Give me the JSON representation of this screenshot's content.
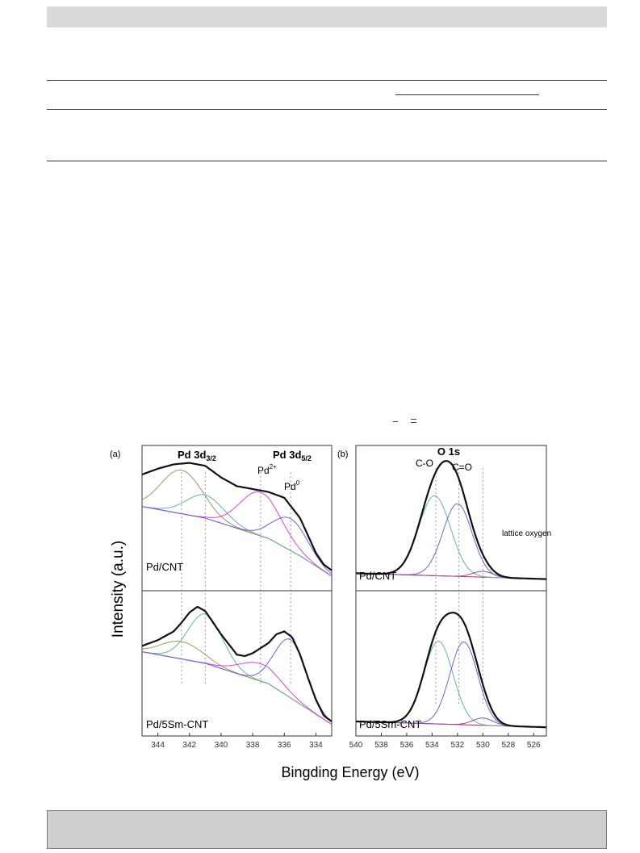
{
  "header": {
    "bar_color": "#d9d9d9"
  },
  "footer": {
    "box_color": "#cfcfcf"
  },
  "figure": {
    "ylabel": "Intensity (a.u.)",
    "xlabel": "Bingding Energy (eV)",
    "colors": {
      "envelope": "#111111",
      "pd_olive": "#9a9a55",
      "pd_cyan": "#5fb3b3",
      "pd_magenta": "#e040e0",
      "pd_blue": "#6666dd",
      "pd_bg_red": "#e04040",
      "o_cyan": "#5fb3b3",
      "o_blue": "#6666dd",
      "o_lattice": "#8a4aa0",
      "o_bg": "#cc2244"
    }
  },
  "chart_data": [
    {
      "type": "line",
      "panel_label": "(a)",
      "x_range": [
        345,
        333
      ],
      "x_reversed": true,
      "xticks": [
        344,
        342,
        340,
        338,
        336,
        334
      ],
      "annotations": [
        "Pd 3d",
        "3/2",
        "Pd 3d",
        "5/2",
        "Pd",
        "2+",
        "Pd",
        "0"
      ],
      "reference_lines_ev": [
        342.5,
        341.0,
        337.5,
        335.6
      ],
      "subpanels": [
        {
          "label": "Pd/CNT",
          "envelope": {
            "x": [
              345,
              344,
              343,
              342,
              341,
              340,
              339,
              338,
              337,
              336,
              335,
              334.5,
              334,
              333.5,
              333
            ],
            "y": [
              0.8,
              0.84,
              0.87,
              0.88,
              0.86,
              0.78,
              0.72,
              0.7,
              0.68,
              0.64,
              0.5,
              0.38,
              0.26,
              0.18,
              0.14
            ]
          },
          "components": [
            {
              "name": "Pd 3d3/2 Pd2+",
              "color_key": "pd_olive",
              "center": 342.5,
              "height": 0.3,
              "width": 1.3
            },
            {
              "name": "Pd 3d3/2 Pd0",
              "color_key": "pd_cyan",
              "center": 341.0,
              "height": 0.16,
              "width": 1.2
            },
            {
              "name": "Pd 3d5/2 Pd2+",
              "color_key": "pd_magenta",
              "center": 337.5,
              "height": 0.3,
              "width": 1.3
            },
            {
              "name": "Pd 3d5/2 Pd0",
              "color_key": "pd_blue",
              "center": 335.6,
              "height": 0.22,
              "width": 1.1
            }
          ],
          "background": {
            "x": [
              345,
              341,
              337,
              335,
              333
            ],
            "y": [
              0.58,
              0.5,
              0.36,
              0.24,
              0.1
            ]
          }
        },
        {
          "label": "Pd/5Sm-CNT",
          "envelope": {
            "x": [
              345,
              344,
              343,
              342.5,
              342,
              341.5,
              341,
              340,
              339,
              338.5,
              338,
              337,
              336.5,
              336,
              335.5,
              335,
              334.5,
              334,
              333.5,
              333
            ],
            "y": [
              0.62,
              0.66,
              0.72,
              0.78,
              0.85,
              0.89,
              0.86,
              0.7,
              0.56,
              0.55,
              0.57,
              0.64,
              0.7,
              0.72,
              0.68,
              0.56,
              0.4,
              0.25,
              0.14,
              0.1
            ]
          },
          "components": [
            {
              "name": "Pd 3d3/2 Pd2+",
              "color_key": "pd_olive",
              "center": 342.5,
              "height": 0.12,
              "width": 1.3
            },
            {
              "name": "Pd 3d3/2 Pd0",
              "color_key": "pd_cyan",
              "center": 341.0,
              "height": 0.34,
              "width": 1.1
            },
            {
              "name": "Pd 3d5/2 Pd2+",
              "color_key": "pd_magenta",
              "center": 337.5,
              "height": 0.12,
              "width": 1.3
            },
            {
              "name": "Pd 3d5/2 Pd0",
              "color_key": "pd_blue",
              "center": 335.6,
              "height": 0.4,
              "width": 1.0
            }
          ],
          "background": {
            "x": [
              345,
              341,
              337,
              335,
              333
            ],
            "y": [
              0.58,
              0.5,
              0.36,
              0.22,
              0.08
            ]
          }
        }
      ]
    },
    {
      "type": "line",
      "panel_label": "(b)",
      "title": "O 1s",
      "x_range": [
        540,
        525
      ],
      "x_reversed": true,
      "xticks": [
        540,
        538,
        536,
        534,
        532,
        530,
        528,
        526
      ],
      "annotations": [
        "C-O",
        "C=O",
        "lattice oxygen"
      ],
      "reference_lines_ev": [
        533.7,
        531.9,
        530.0
      ],
      "subpanels": [
        {
          "label": "Pd/CNT",
          "components": [
            {
              "name": "C-O",
              "color_key": "o_cyan",
              "center": 533.8,
              "height": 0.55,
              "width": 1.25
            },
            {
              "name": "C=O",
              "color_key": "o_blue",
              "center": 532.0,
              "height": 0.5,
              "width": 1.15
            },
            {
              "name": "lattice oxygen",
              "color_key": "o_lattice",
              "center": 530.0,
              "height": 0.04,
              "width": 0.8
            }
          ],
          "background": {
            "x": [
              540,
              525
            ],
            "y": [
              0.12,
              0.08
            ]
          }
        },
        {
          "label": "Pd/5Sm-CNT",
          "components": [
            {
              "name": "C-O",
              "color_key": "o_cyan",
              "center": 533.5,
              "height": 0.57,
              "width": 1.15
            },
            {
              "name": "C=O",
              "color_key": "o_blue",
              "center": 531.5,
              "height": 0.57,
              "width": 1.1
            },
            {
              "name": "lattice oxygen",
              "color_key": "o_lattice",
              "center": 530.0,
              "height": 0.05,
              "width": 0.8
            }
          ],
          "background": {
            "x": [
              540,
              525
            ],
            "y": [
              0.1,
              0.06
            ]
          }
        }
      ]
    }
  ]
}
